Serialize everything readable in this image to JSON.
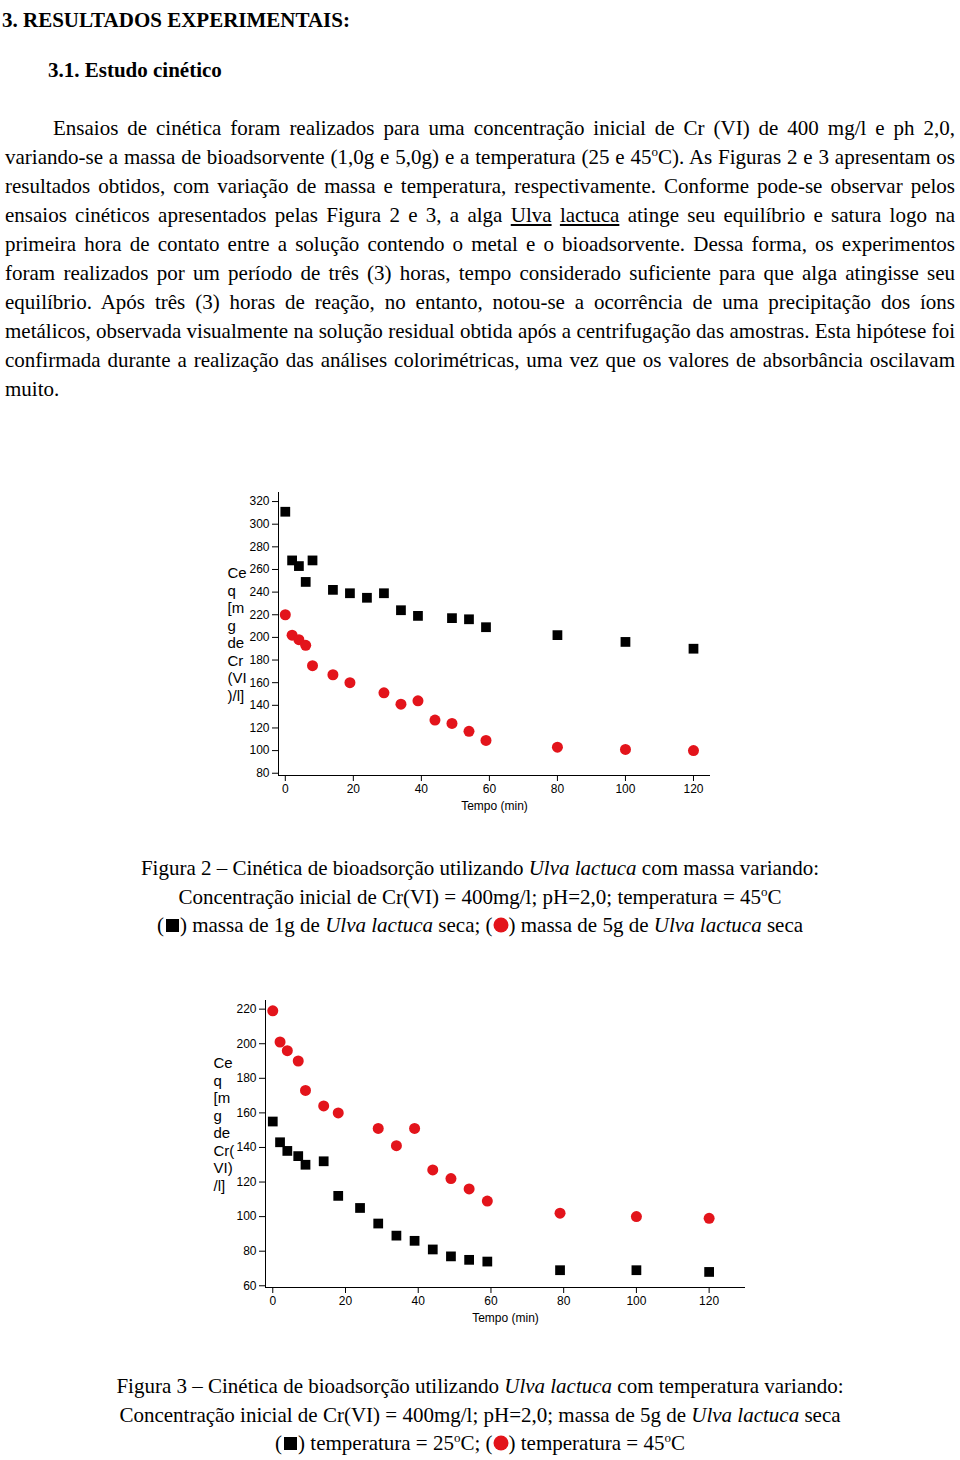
{
  "document": {
    "heading": "3. RESULTADOS EXPERIMENTAIS:",
    "subheading": "3.1. Estudo cinético",
    "paragraph": [
      {
        "text": "Ensaios de cinética foram realizados para uma concentração inicial de Cr (VI) de 400 mg/l e ph 2,0, variando-se a massa de bioadsorvente (1,0g e 5,0g) e a temperatura (25 e 45"
      },
      {
        "text": "o",
        "style": "sup"
      },
      {
        "text": "C). As Figuras 2 e 3 apresentam os resultados obtidos, com variação de massa e temperatura, respectivamente. Conforme pode-se observar pelos ensaios cinéticos apresentados pelas Figura 2 e 3, a alga "
      },
      {
        "text": "Ulva",
        "style": "underline"
      },
      {
        "text": " "
      },
      {
        "text": "lactuca",
        "style": "underline"
      },
      {
        "text": " atinge seu equilíbrio e satura  logo na primeira hora de contato entre a solução contendo o metal e o bioadsorvente. Dessa forma, os experimentos foram realizados por um período de três (3) horas, tempo considerado suficiente para que alga atingisse seu equilíbrio. Após três (3) horas de reação, no entanto, notou-se a ocorrência de uma precipitação dos íons metálicos, observada visualmente na solução residual obtida após a centrifugação das amostras. Esta hipótese foi confirmada durante a realização das análises colorimétricas, uma vez que os valores de absorbância oscilavam muito."
      }
    ]
  },
  "chart_data": [
    {
      "type": "scatter",
      "ylabel": [
        "Ce",
        "q",
        "[m",
        "g",
        "de",
        "Cr",
        "(VI",
        ")/l]"
      ],
      "xlabel": "Tempo (min)",
      "xlim": [
        -2,
        125
      ],
      "ylim": [
        78,
        328
      ],
      "xticks": [
        0,
        20,
        40,
        60,
        80,
        100,
        120
      ],
      "yticks": [
        80,
        100,
        120,
        140,
        160,
        180,
        200,
        220,
        240,
        260,
        280,
        300,
        320
      ],
      "series": [
        {
          "marker": "square",
          "color": "#000000",
          "x": [
            0,
            2,
            4,
            6,
            8,
            14,
            19,
            24,
            29,
            34,
            39,
            49,
            54,
            59,
            80,
            100,
            120
          ],
          "values": [
            311,
            268,
            263,
            249,
            268,
            242,
            239,
            235,
            239,
            224,
            219,
            217,
            216,
            209,
            202,
            196,
            190
          ]
        },
        {
          "marker": "circle",
          "color": "#e3141b",
          "x": [
            0,
            2,
            4,
            6,
            8,
            14,
            19,
            29,
            34,
            39,
            44,
            49,
            54,
            59,
            80,
            100,
            120
          ],
          "values": [
            220,
            202,
            198,
            193,
            175,
            167,
            160,
            151,
            141,
            144,
            127,
            124,
            117,
            109,
            103,
            101,
            100
          ]
        }
      ],
      "caption": [
        [
          {
            "text": "Figura 2 – Cinética de bioadsorção utilizando "
          },
          {
            "text": "Ulva lactuca",
            "style": "italic"
          },
          {
            "text": " com massa variando:"
          }
        ],
        [
          {
            "text": "Concentração inicial de Cr(VI) = 400mg/l; pH=2,0; temperatura = 45"
          },
          {
            "text": "o",
            "style": "sup"
          },
          {
            "text": "C"
          }
        ],
        [
          {
            "text": "("
          },
          {
            "series": 0
          },
          {
            "text": ") massa de 1g de "
          },
          {
            "text": "Ulva lactuca",
            "style": "italic"
          },
          {
            "text": " seca; ("
          },
          {
            "series": 1
          },
          {
            "text": ") massa de 5g de "
          },
          {
            "text": "Ulva lactuca",
            "style": "italic"
          },
          {
            "text": " seca"
          }
        ]
      ]
    },
    {
      "type": "scatter",
      "ylabel": [
        "Ce",
        "q",
        "[m",
        "g",
        "de",
        "Cr(",
        "VI)",
        "/l]"
      ],
      "xlabel": "Tempo (min)",
      "xlim": [
        -2,
        130
      ],
      "ylim": [
        59,
        225
      ],
      "xticks": [
        0,
        20,
        40,
        60,
        80,
        100,
        120
      ],
      "yticks": [
        60,
        80,
        100,
        120,
        140,
        160,
        180,
        200,
        220
      ],
      "series": [
        {
          "marker": "square",
          "color": "#000000",
          "x": [
            0,
            2,
            4,
            7,
            9,
            14,
            18,
            24,
            29,
            34,
            39,
            44,
            49,
            54,
            59,
            79,
            100,
            120
          ],
          "values": [
            155,
            143,
            138,
            135,
            130,
            132,
            112,
            105,
            96,
            89,
            86,
            81,
            77,
            75,
            74,
            69,
            69,
            68
          ]
        },
        {
          "marker": "circle",
          "color": "#e3141b",
          "x": [
            0,
            2,
            4,
            7,
            9,
            14,
            18,
            29,
            34,
            39,
            44,
            49,
            54,
            59,
            79,
            100,
            120
          ],
          "values": [
            219,
            201,
            196,
            190,
            173,
            164,
            160,
            151,
            141,
            151,
            127,
            122,
            116,
            109,
            102,
            100,
            99
          ]
        }
      ],
      "caption": [
        [
          {
            "text": "Figura 3 – Cinética de bioadsorção utilizando "
          },
          {
            "text": "Ulva lactuca",
            "style": "italic"
          },
          {
            "text": " com temperatura variando:"
          }
        ],
        [
          {
            "text": "Concentração inicial de Cr(VI) = 400mg/l; pH=2,0; massa de 5g de "
          },
          {
            "text": "Ulva lactuca",
            "style": "italic"
          },
          {
            "text": " seca"
          }
        ],
        [
          {
            "text": "("
          },
          {
            "series": 0
          },
          {
            "text": ") temperatura = 25"
          },
          {
            "text": "o",
            "style": "sup"
          },
          {
            "text": "C; ("
          },
          {
            "series": 1
          },
          {
            "text": ") temperatura = 45"
          },
          {
            "text": "o",
            "style": "sup"
          },
          {
            "text": "C"
          }
        ]
      ]
    }
  ]
}
